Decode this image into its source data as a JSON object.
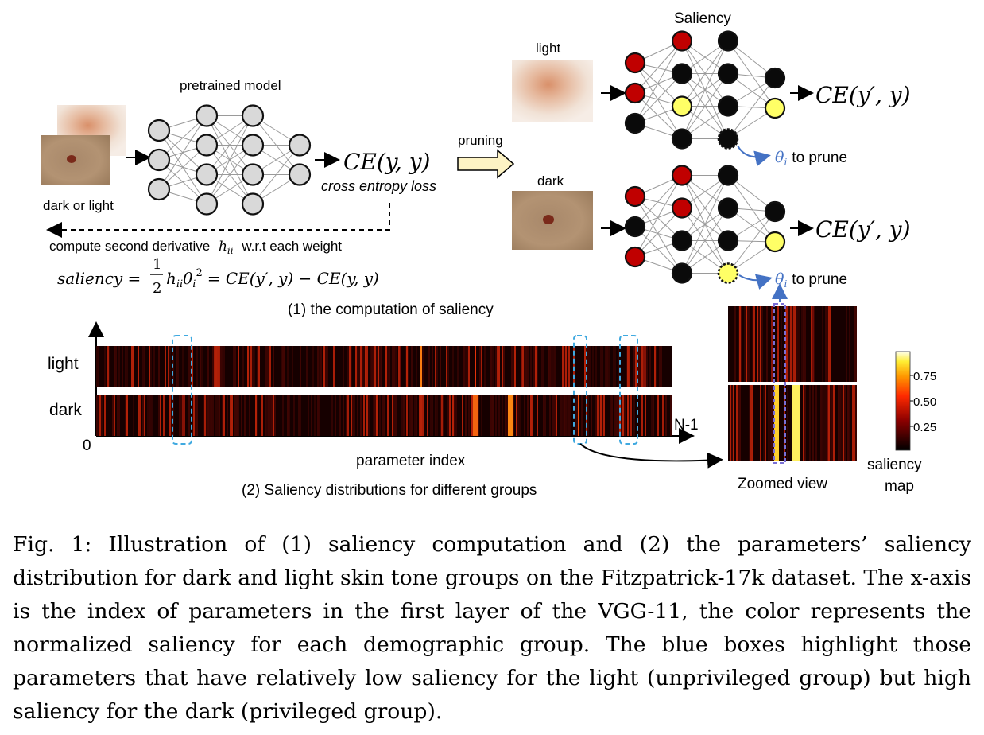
{
  "panel1": {
    "input_label": "dark or light",
    "pretrained_label": "pretrained model",
    "loss_formula": "CE(y, y)",
    "loss_caption": "cross entropy loss",
    "derivative_prefix": "compute second derivative",
    "derivative_symbol": "h",
    "derivative_subscript": "ii",
    "derivative_suffix": "w.r.t each weight",
    "saliency_lhs": "saliency =",
    "saliency_frac_num": "1",
    "saliency_frac_den": "2",
    "saliency_mid": "h",
    "saliency_mid_sub": "ii",
    "saliency_theta": "θ",
    "saliency_theta_sub": "i",
    "saliency_sup": "2",
    "saliency_rhs": "= CE(y′, y) − CE(y, y)",
    "pruning_label": "pruning",
    "saliency_title": "Saliency",
    "light_label": "light",
    "dark_label": "dark",
    "pruned_loss": "CE(y′, y)",
    "theta_symbol": "θ",
    "theta_sub": "i",
    "to_prune": "to prune",
    "section_title": "(1) the computation of saliency"
  },
  "panel2": {
    "row_light": "light",
    "row_dark": "dark",
    "origin_label": "0",
    "end_label": "N-1",
    "x_axis_label": "parameter index",
    "section_title": "(2) Saliency distributions for different groups",
    "zoom_label": "Zoomed view",
    "colorbar_ticks": [
      "0.75",
      "0.50",
      "0.25"
    ],
    "colorbar_label_1": "saliency",
    "colorbar_label_2": "map"
  },
  "colors": {
    "node_gray": "#d9d9d9",
    "node_black": "#0a0a0a",
    "node_red": "#c00000",
    "node_yellow": "#ffff66",
    "accent_blue": "#4472c4",
    "box_blue": "#3fa9e0",
    "arrow_fill": "#fdf3c4"
  },
  "caption": "Fig. 1: Illustration of (1) saliency computation and (2) the parameters’ saliency distribution for dark and light skin tone groups on the Fitzpatrick-17k dataset. The x-axis is the index of parameters in the first layer of the VGG-11, the color represents the normalized saliency for each demographic group. The blue boxes highlight those parameters that have relatively low saliency for the light (unprivileged group) but high saliency for the dark (privileged group)."
}
